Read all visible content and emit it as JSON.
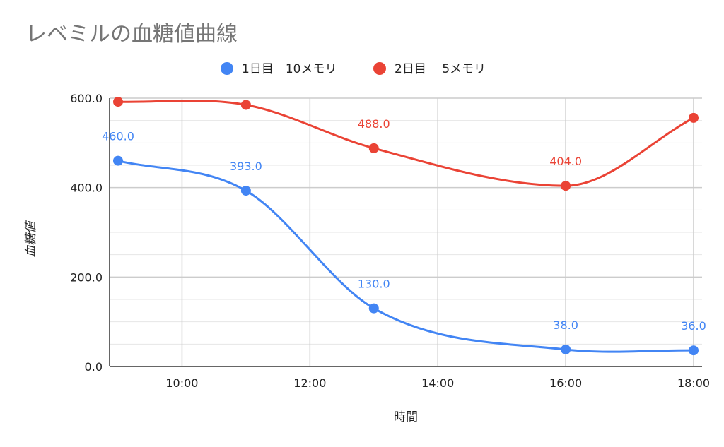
{
  "chart_data": {
    "type": "line",
    "title": "レベミルの血糖値曲線",
    "xlabel": "時間",
    "ylabel": "血糖値",
    "x_ticks": [
      "10:00",
      "12:00",
      "14:00",
      "16:00",
      "18:00"
    ],
    "x_tick_values": [
      "10:00",
      "12:00",
      "14:00",
      "16:00",
      "18:00"
    ],
    "x_range": [
      "9:00",
      "18:00"
    ],
    "y_ticks": [
      "0.0",
      "200.0",
      "400.0",
      "600.0"
    ],
    "ylim": [
      0,
      600
    ],
    "grid": true,
    "legend_position": "top",
    "smooth": true,
    "series": [
      {
        "name": "1日目　10メモリ",
        "color": "#4285F4",
        "x": [
          "9:00",
          "11:00",
          "13:00",
          "16:00",
          "18:00"
        ],
        "values": [
          460,
          393,
          130,
          38,
          36
        ],
        "labels": [
          "460.0",
          "393.0",
          "130.0",
          "38.0",
          "36.0"
        ]
      },
      {
        "name": "2日目　 5メモリ",
        "color": "#EA4335",
        "x": [
          "9:00",
          "11:00",
          "13:00",
          "16:00",
          "18:00"
        ],
        "values": [
          592,
          585,
          488,
          404,
          556
        ],
        "labels": [
          "",
          "",
          "488.0",
          "404.0",
          ""
        ]
      }
    ]
  }
}
